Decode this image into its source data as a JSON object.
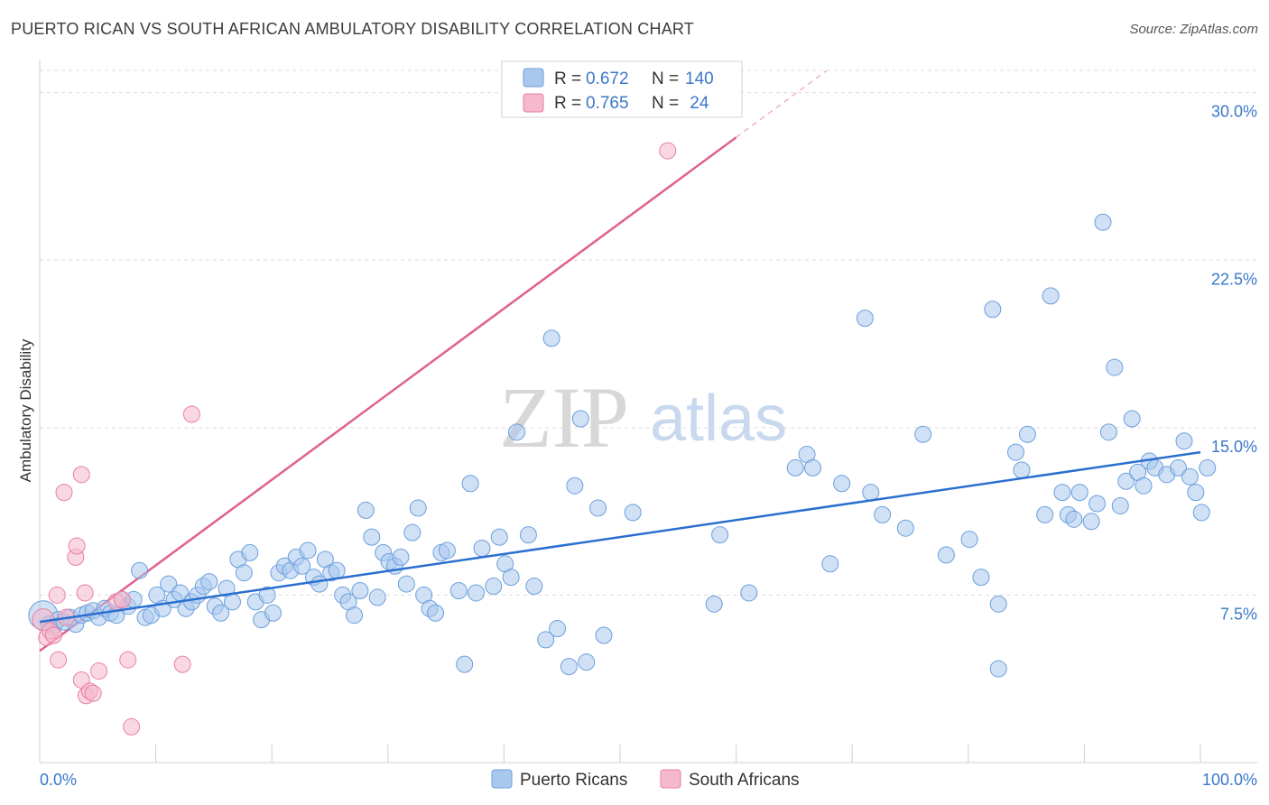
{
  "title": "PUERTO RICAN VS SOUTH AFRICAN AMBULATORY DISABILITY CORRELATION CHART",
  "source": "Source: ZipAtlas.com",
  "watermark": {
    "zip": "ZIP",
    "atlas": "atlas"
  },
  "colors": {
    "blue_fill": "#a9c8ee",
    "blue_stroke": "#6b9fdc",
    "blue_line": "#2a6fd0",
    "pink_fill": "#f6b8cc",
    "pink_stroke": "#e97fa0",
    "pink_line": "#e0608e",
    "axis_text": "#3a78c9",
    "grid": "#dcdcdc"
  },
  "legend": {
    "rows": [
      {
        "r_label": "R = ",
        "r_value": "0.672",
        "n_label": "N = ",
        "n_value": "140",
        "series": "blue"
      },
      {
        "r_label": "R = ",
        "r_value": "0.765",
        "n_label": "N = ",
        "n_value": " 24",
        "series": "pink"
      }
    ]
  },
  "bottom_legend": [
    {
      "label": "Puerto Ricans",
      "series": "blue"
    },
    {
      "label": "South Africans",
      "series": "pink"
    }
  ],
  "chart_data": {
    "type": "scatter",
    "title": "PUERTO RICAN VS SOUTH AFRICAN AMBULATORY DISABILITY CORRELATION CHART",
    "xlabel": "",
    "ylabel": "Ambulatory Disability",
    "xlim": [
      0,
      100
    ],
    "ylim": [
      0,
      31
    ],
    "x_tick_labels": [
      "0.0%",
      "100.0%"
    ],
    "y_ticks": [
      7.5,
      15.0,
      22.5,
      30.0
    ],
    "y_tick_labels": [
      "7.5%",
      "15.0%",
      "22.5%",
      "30.0%"
    ],
    "series": [
      {
        "name": "Puerto Ricans",
        "color": "#a9c8ee",
        "trend": {
          "x": [
            0,
            100
          ],
          "y": [
            6.3,
            13.9
          ]
        },
        "points": [
          [
            0.3,
            6.6
          ],
          [
            0.8,
            6.2
          ],
          [
            1.2,
            6.1
          ],
          [
            1.6,
            6.4
          ],
          [
            2.1,
            6.3
          ],
          [
            2.6,
            6.5
          ],
          [
            3.1,
            6.2
          ],
          [
            3.6,
            6.6
          ],
          [
            4.1,
            6.7
          ],
          [
            4.6,
            6.8
          ],
          [
            5.1,
            6.5
          ],
          [
            5.6,
            6.9
          ],
          [
            6.1,
            6.7
          ],
          [
            6.6,
            6.6
          ],
          [
            7.1,
            7.3
          ],
          [
            7.6,
            7.0
          ],
          [
            8.1,
            7.3
          ],
          [
            8.6,
            8.6
          ],
          [
            9.1,
            6.5
          ],
          [
            9.6,
            6.6
          ],
          [
            10.1,
            7.5
          ],
          [
            10.6,
            6.9
          ],
          [
            11.1,
            8.0
          ],
          [
            11.6,
            7.3
          ],
          [
            12.1,
            7.6
          ],
          [
            12.6,
            6.9
          ],
          [
            13.1,
            7.2
          ],
          [
            13.6,
            7.5
          ],
          [
            14.1,
            7.9
          ],
          [
            14.6,
            8.1
          ],
          [
            15.1,
            7.0
          ],
          [
            15.6,
            6.7
          ],
          [
            16.1,
            7.8
          ],
          [
            16.6,
            7.2
          ],
          [
            17.1,
            9.1
          ],
          [
            17.6,
            8.5
          ],
          [
            18.1,
            9.4
          ],
          [
            18.6,
            7.2
          ],
          [
            19.1,
            6.4
          ],
          [
            19.6,
            7.5
          ],
          [
            20.1,
            6.7
          ],
          [
            20.6,
            8.5
          ],
          [
            21.1,
            8.8
          ],
          [
            21.6,
            8.6
          ],
          [
            22.1,
            9.2
          ],
          [
            22.6,
            8.8
          ],
          [
            23.1,
            9.5
          ],
          [
            23.6,
            8.3
          ],
          [
            24.1,
            8.0
          ],
          [
            24.6,
            9.1
          ],
          [
            25.1,
            8.5
          ],
          [
            25.6,
            8.6
          ],
          [
            26.1,
            7.5
          ],
          [
            26.6,
            7.2
          ],
          [
            27.1,
            6.6
          ],
          [
            27.6,
            7.7
          ],
          [
            28.1,
            11.3
          ],
          [
            28.6,
            10.1
          ],
          [
            29.1,
            7.4
          ],
          [
            29.6,
            9.4
          ],
          [
            30.1,
            9.0
          ],
          [
            30.6,
            8.8
          ],
          [
            31.1,
            9.2
          ],
          [
            31.6,
            8.0
          ],
          [
            32.1,
            10.3
          ],
          [
            32.6,
            11.4
          ],
          [
            33.1,
            7.5
          ],
          [
            33.6,
            6.9
          ],
          [
            34.1,
            6.7
          ],
          [
            34.6,
            9.4
          ],
          [
            35.1,
            9.5
          ],
          [
            36.1,
            7.7
          ],
          [
            36.6,
            4.4
          ],
          [
            37.1,
            12.5
          ],
          [
            37.6,
            7.6
          ],
          [
            38.1,
            9.6
          ],
          [
            39.1,
            7.9
          ],
          [
            39.6,
            10.1
          ],
          [
            40.1,
            8.9
          ],
          [
            40.6,
            8.3
          ],
          [
            41.1,
            14.8
          ],
          [
            42.1,
            10.2
          ],
          [
            42.6,
            7.9
          ],
          [
            43.6,
            5.5
          ],
          [
            44.1,
            19.0
          ],
          [
            44.6,
            6.0
          ],
          [
            45.6,
            4.3
          ],
          [
            46.1,
            12.4
          ],
          [
            46.6,
            15.4
          ],
          [
            47.1,
            4.5
          ],
          [
            48.1,
            11.4
          ],
          [
            48.6,
            5.7
          ],
          [
            51.1,
            11.2
          ],
          [
            58.1,
            7.1
          ],
          [
            58.6,
            10.2
          ],
          [
            61.1,
            7.6
          ],
          [
            65.1,
            13.2
          ],
          [
            66.1,
            13.8
          ],
          [
            66.6,
            13.2
          ],
          [
            68.1,
            8.9
          ],
          [
            69.1,
            12.5
          ],
          [
            71.1,
            19.9
          ],
          [
            71.6,
            12.1
          ],
          [
            72.6,
            11.1
          ],
          [
            74.6,
            10.5
          ],
          [
            76.1,
            14.7
          ],
          [
            78.1,
            9.3
          ],
          [
            80.1,
            10.0
          ],
          [
            81.1,
            8.3
          ],
          [
            82.1,
            20.3
          ],
          [
            82.6,
            7.1
          ],
          [
            82.6,
            4.2
          ],
          [
            84.1,
            13.9
          ],
          [
            84.6,
            13.1
          ],
          [
            85.1,
            14.7
          ],
          [
            86.6,
            11.1
          ],
          [
            87.1,
            20.9
          ],
          [
            88.1,
            12.1
          ],
          [
            88.6,
            11.1
          ],
          [
            89.1,
            10.9
          ],
          [
            89.6,
            12.1
          ],
          [
            90.6,
            10.8
          ],
          [
            91.1,
            11.6
          ],
          [
            91.6,
            24.2
          ],
          [
            92.1,
            14.8
          ],
          [
            92.6,
            17.7
          ],
          [
            93.1,
            11.5
          ],
          [
            93.6,
            12.6
          ],
          [
            94.1,
            15.4
          ],
          [
            94.6,
            13.0
          ],
          [
            95.1,
            12.4
          ],
          [
            95.6,
            13.5
          ],
          [
            96.1,
            13.2
          ],
          [
            97.1,
            12.9
          ],
          [
            98.1,
            13.2
          ],
          [
            98.6,
            14.4
          ],
          [
            99.1,
            12.8
          ],
          [
            99.6,
            12.1
          ],
          [
            100.1,
            11.2
          ],
          [
            100.6,
            13.2
          ]
        ]
      },
      {
        "name": "South Africans",
        "color": "#f6b8cc",
        "trend": {
          "x": [
            0,
            60
          ],
          "y": [
            5.0,
            28.0
          ]
        },
        "points": [
          [
            0.3,
            6.4
          ],
          [
            0.6,
            5.6
          ],
          [
            0.9,
            5.9
          ],
          [
            1.2,
            5.7
          ],
          [
            1.5,
            7.5
          ],
          [
            1.6,
            4.6
          ],
          [
            2.1,
            12.1
          ],
          [
            2.3,
            6.5
          ],
          [
            3.1,
            9.2
          ],
          [
            3.2,
            9.7
          ],
          [
            3.6,
            3.7
          ],
          [
            3.6,
            12.9
          ],
          [
            3.9,
            7.6
          ],
          [
            4.0,
            3.0
          ],
          [
            4.3,
            3.2
          ],
          [
            4.6,
            3.1
          ],
          [
            5.1,
            4.1
          ],
          [
            6.6,
            7.2
          ],
          [
            7.1,
            7.3
          ],
          [
            7.6,
            4.6
          ],
          [
            7.9,
            1.6
          ],
          [
            12.3,
            4.4
          ],
          [
            13.1,
            15.6
          ],
          [
            54.1,
            27.4
          ]
        ]
      }
    ]
  }
}
